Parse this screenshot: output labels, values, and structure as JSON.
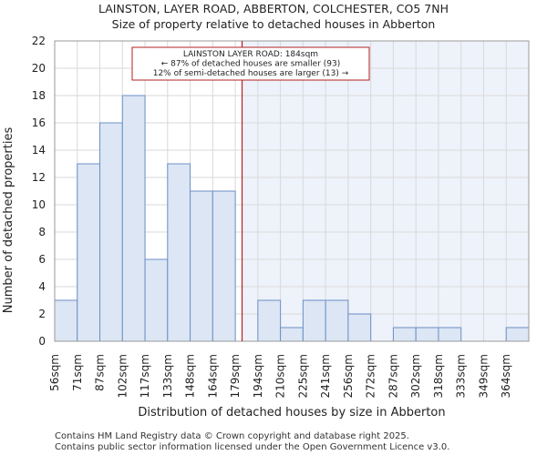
{
  "chart_data": {
    "type": "bar",
    "title": "LAINSTON, LAYER ROAD, ABBERTON, COLCHESTER, CO5 7NH",
    "subtitle": "Size of property relative to detached houses in Abberton",
    "xlabel": "Distribution of detached houses by size in Abberton",
    "ylabel": "Number of detached properties",
    "categories": [
      "56sqm",
      "71sqm",
      "87sqm",
      "102sqm",
      "117sqm",
      "133sqm",
      "148sqm",
      "164sqm",
      "179sqm",
      "194sqm",
      "210sqm",
      "225sqm",
      "241sqm",
      "256sqm",
      "272sqm",
      "287sqm",
      "302sqm",
      "318sqm",
      "333sqm",
      "349sqm",
      "364sqm"
    ],
    "values": [
      3,
      13,
      16,
      18,
      6,
      13,
      11,
      11,
      0,
      3,
      1,
      3,
      3,
      2,
      0,
      1,
      1,
      1,
      0,
      0,
      1
    ],
    "ylim": [
      0,
      22
    ],
    "yticks": [
      0,
      2,
      4,
      6,
      8,
      10,
      12,
      14,
      16,
      18,
      20,
      22
    ],
    "grid": true,
    "property_marker": {
      "value_index": 8.3,
      "color": "#b22222"
    },
    "annotation": {
      "line1": "LAINSTON LAYER ROAD: 184sqm",
      "line2": "← 87% of detached houses are smaller (93)",
      "line3": "12% of semi-detached houses are larger (13) →"
    },
    "colors": {
      "bar_fill": "#dce6f4",
      "bar_stroke": "#6b8fc7",
      "highlight_bg": "#eef2fa",
      "grid": "#d9d9d9",
      "marker": "#b22222"
    }
  },
  "footer": {
    "line1": "Contains HM Land Registry data © Crown copyright and database right 2025.",
    "line2": "Contains public sector information licensed under the Open Government Licence v3.0."
  }
}
